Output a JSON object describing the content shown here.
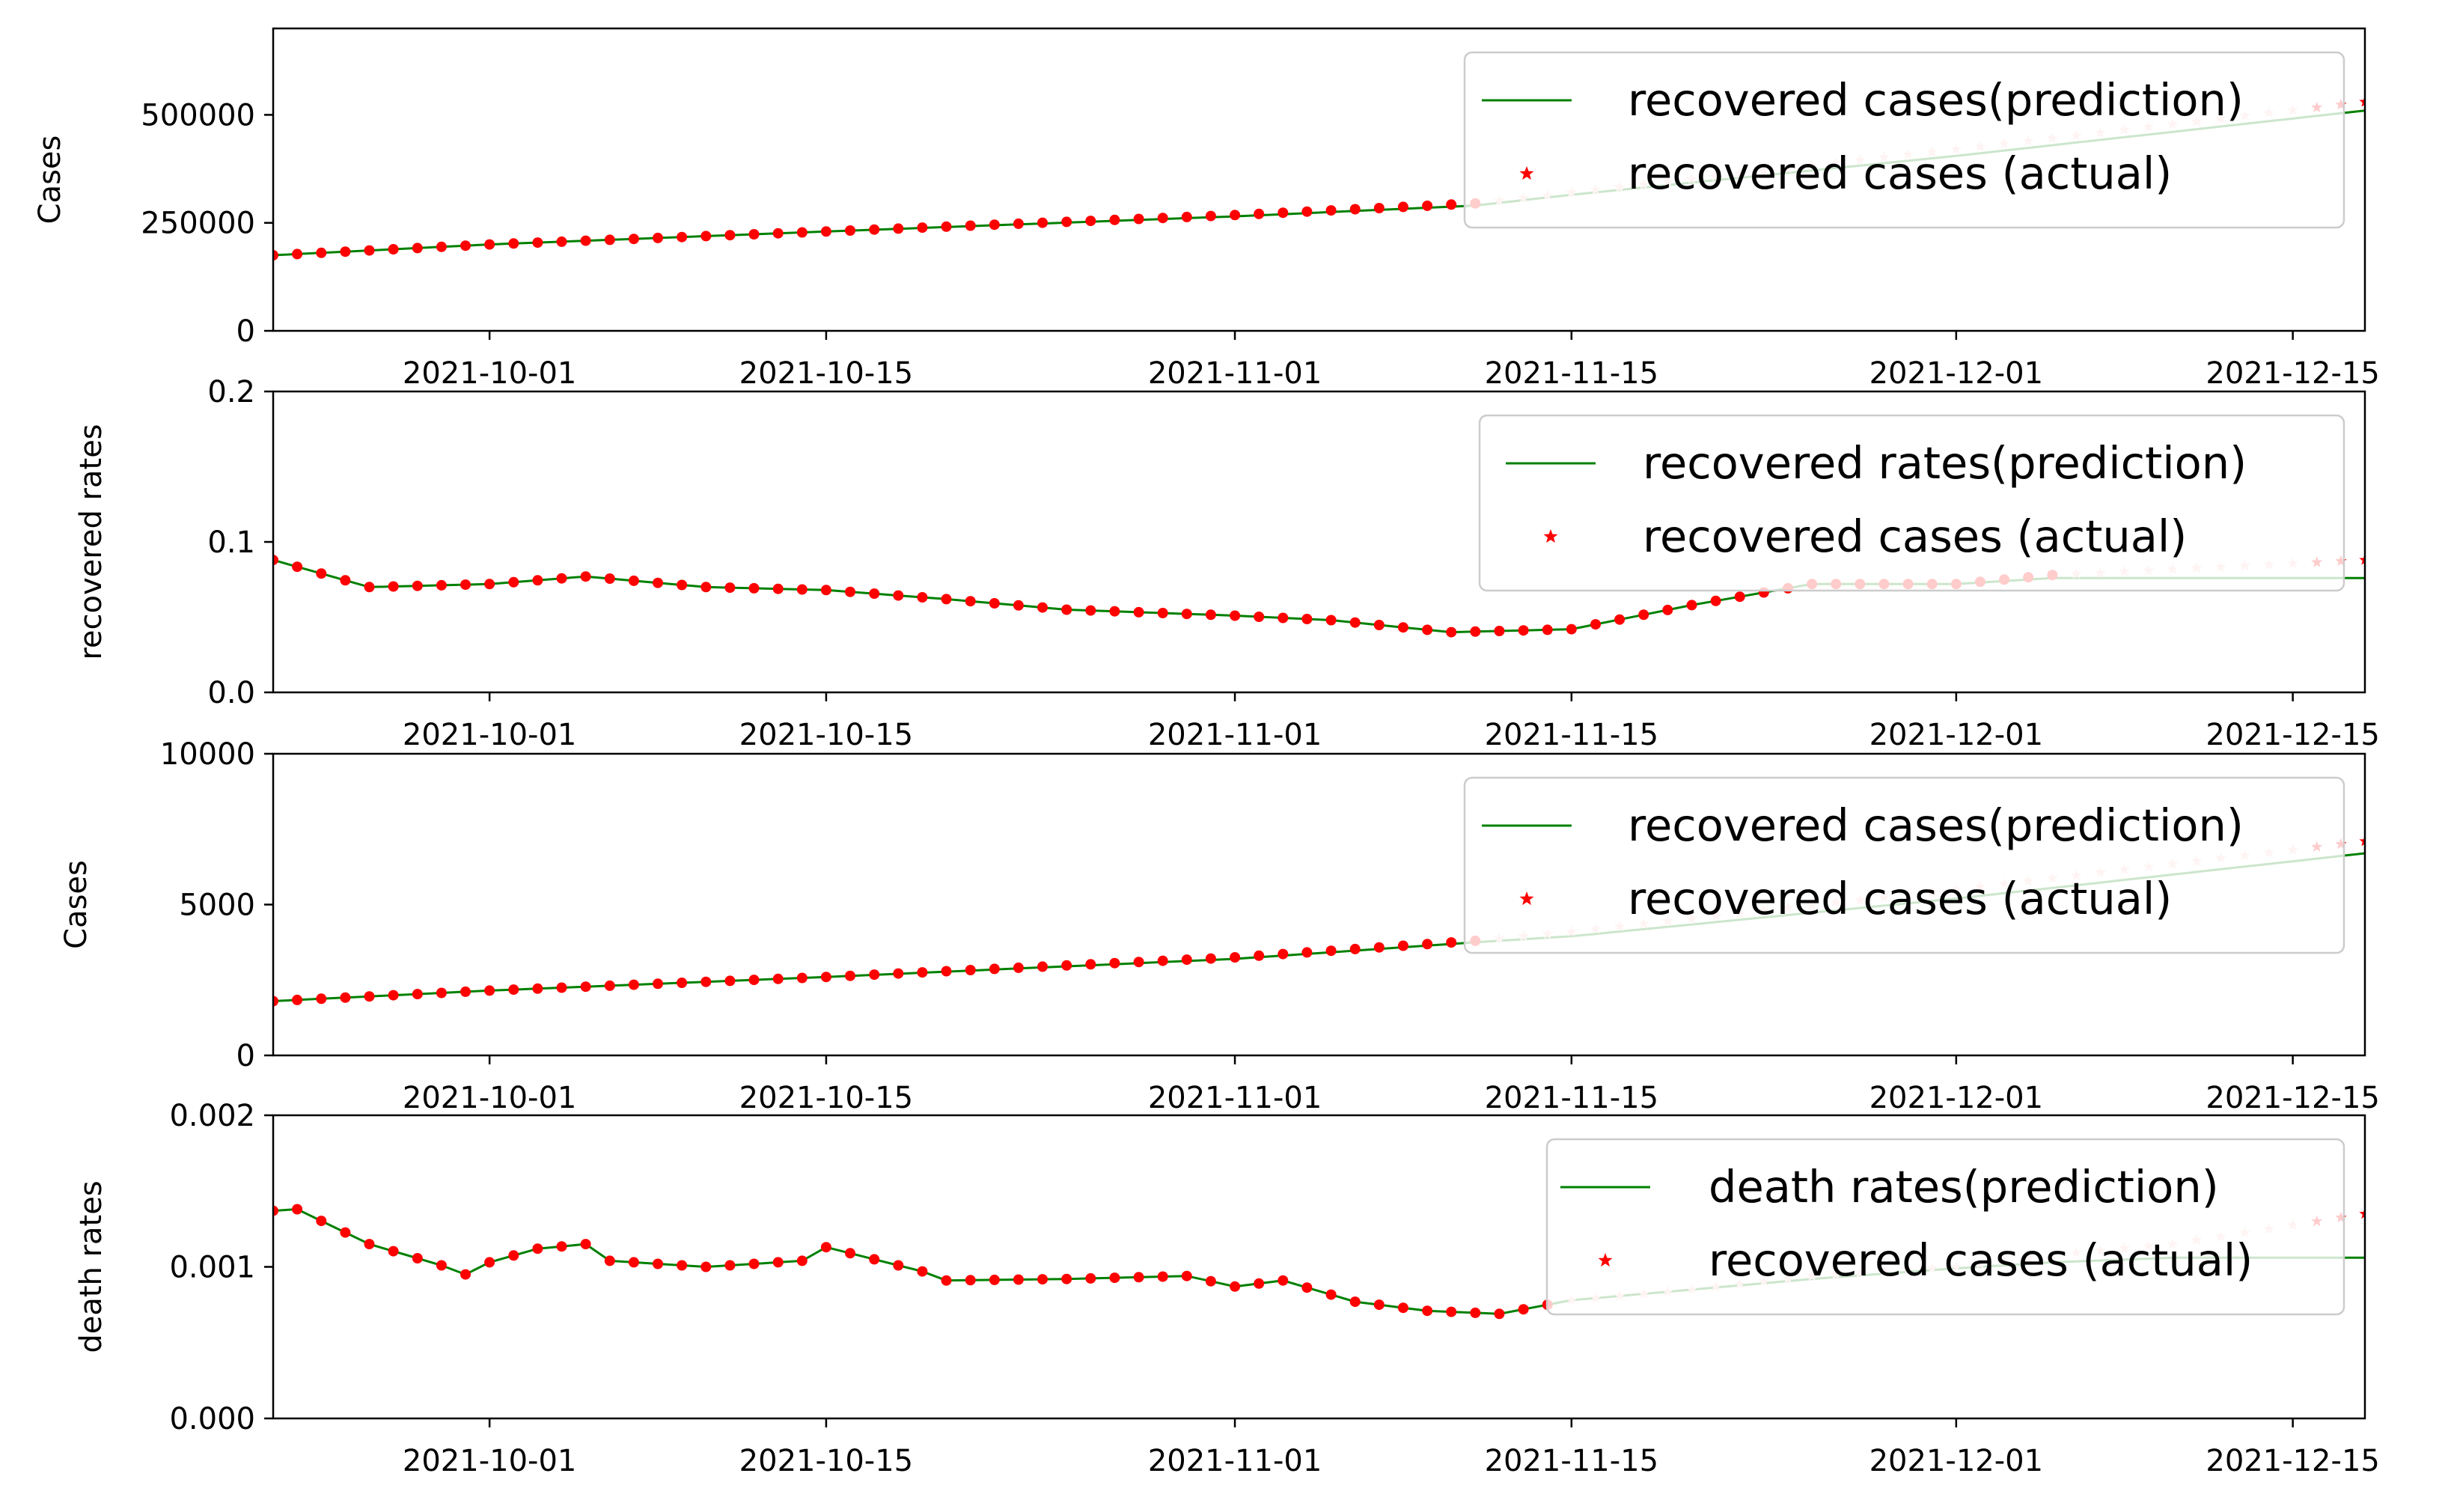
{
  "figure": {
    "colors": {
      "prediction": "#008000",
      "actual": "#ff0000",
      "actual_faded": "#ffc8c8",
      "axes": "#000000"
    }
  },
  "chart_data": [
    {
      "type": "line",
      "ylabel": "Cases",
      "ylim": [
        0,
        700000
      ],
      "yticks": [
        0,
        250000,
        500000
      ],
      "ytick_labels": [
        "0",
        "250000",
        "500000"
      ],
      "xlim": [
        "2021-09-22",
        "2021-12-18"
      ],
      "xticks": [
        "2021-10-01",
        "2021-10-15",
        "2021-11-01",
        "2021-11-15",
        "2021-12-01",
        "2021-12-15"
      ],
      "legend": {
        "location": "upper right"
      },
      "prediction_end": "2021-11-11",
      "series": [
        {
          "name": "recovered cases(prediction)",
          "style": "line",
          "color": "#008000",
          "x": [
            "2021-09-22",
            "2021-10-01",
            "2021-10-15",
            "2021-11-01",
            "2021-11-11",
            "2021-11-15",
            "2021-12-01",
            "2021-12-18"
          ],
          "values": [
            175000,
            200000,
            230000,
            265000,
            290000,
            315000,
            405000,
            510000
          ]
        },
        {
          "name": "recovered cases (actual)",
          "style": "markers",
          "color": "#ff0000",
          "x": [
            "2021-09-22",
            "2021-10-01",
            "2021-10-15",
            "2021-11-01",
            "2021-11-11",
            "2021-11-15",
            "2021-12-01",
            "2021-12-18"
          ],
          "values": [
            175000,
            200000,
            230000,
            268000,
            295000,
            320000,
            420000,
            530000
          ]
        }
      ]
    },
    {
      "type": "line",
      "ylabel": "recovered rates",
      "ylim": [
        0,
        0.2
      ],
      "yticks": [
        0,
        0.1,
        0.2
      ],
      "ytick_labels": [
        "0.0",
        "0.1",
        "0.2"
      ],
      "xlim": [
        "2021-09-22",
        "2021-12-18"
      ],
      "xticks": [
        "2021-10-01",
        "2021-10-15",
        "2021-11-01",
        "2021-11-15",
        "2021-12-01",
        "2021-12-15"
      ],
      "legend": {
        "location": "upper right"
      },
      "prediction_end": "2021-12-05",
      "series": [
        {
          "name": "recovered rates(prediction)",
          "style": "line",
          "color": "#008000",
          "x": [
            "2021-09-22",
            "2021-09-26",
            "2021-10-01",
            "2021-10-05",
            "2021-10-10",
            "2021-10-15",
            "2021-10-20",
            "2021-10-25",
            "2021-11-01",
            "2021-11-05",
            "2021-11-10",
            "2021-11-15",
            "2021-11-20",
            "2021-11-25",
            "2021-12-01",
            "2021-12-05",
            "2021-12-18"
          ],
          "values": [
            0.088,
            0.07,
            0.072,
            0.077,
            0.07,
            0.068,
            0.062,
            0.055,
            0.051,
            0.048,
            0.04,
            0.042,
            0.058,
            0.072,
            0.072,
            0.076,
            0.076
          ]
        },
        {
          "name": "recovered cases (actual)",
          "style": "markers",
          "color": "#ff0000",
          "x": [
            "2021-09-22",
            "2021-09-26",
            "2021-10-01",
            "2021-10-05",
            "2021-10-10",
            "2021-10-15",
            "2021-10-20",
            "2021-10-25",
            "2021-11-01",
            "2021-11-05",
            "2021-11-10",
            "2021-11-15",
            "2021-11-20",
            "2021-11-25",
            "2021-12-01",
            "2021-12-05",
            "2021-12-18"
          ],
          "values": [
            0.088,
            0.07,
            0.072,
            0.077,
            0.07,
            0.068,
            0.062,
            0.055,
            0.051,
            0.048,
            0.04,
            0.042,
            0.058,
            0.072,
            0.072,
            0.078,
            0.088
          ]
        }
      ]
    },
    {
      "type": "line",
      "ylabel": "Cases",
      "ylim": [
        0,
        10000
      ],
      "yticks": [
        0,
        5000,
        10000
      ],
      "ytick_labels": [
        "0",
        "5000",
        "10000"
      ],
      "xlim": [
        "2021-09-22",
        "2021-12-18"
      ],
      "xticks": [
        "2021-10-01",
        "2021-10-15",
        "2021-11-01",
        "2021-11-15",
        "2021-12-01",
        "2021-12-15"
      ],
      "legend": {
        "location": "upper right"
      },
      "prediction_end": "2021-11-11",
      "series": [
        {
          "name": "recovered cases(prediction)",
          "style": "line",
          "color": "#008000",
          "x": [
            "2021-09-22",
            "2021-10-01",
            "2021-10-15",
            "2021-11-01",
            "2021-11-11",
            "2021-11-15",
            "2021-12-01",
            "2021-12-18"
          ],
          "values": [
            1800,
            2150,
            2600,
            3200,
            3750,
            3950,
            5200,
            6700
          ]
        },
        {
          "name": "recovered cases (actual)",
          "style": "markers",
          "color": "#ff0000",
          "x": [
            "2021-09-22",
            "2021-10-01",
            "2021-10-15",
            "2021-11-01",
            "2021-11-11",
            "2021-11-15",
            "2021-12-01",
            "2021-12-18"
          ],
          "values": [
            1800,
            2150,
            2600,
            3250,
            3800,
            4100,
            5500,
            7100
          ]
        }
      ]
    },
    {
      "type": "line",
      "ylabel": "death rates",
      "ylim": [
        0,
        0.002
      ],
      "yticks": [
        0,
        0.001,
        0.002
      ],
      "ytick_labels": [
        "0.000",
        "0.001",
        "0.002"
      ],
      "xlim": [
        "2021-09-22",
        "2021-12-18"
      ],
      "xticks": [
        "2021-10-01",
        "2021-10-15",
        "2021-11-01",
        "2021-11-15",
        "2021-12-01",
        "2021-12-15"
      ],
      "legend": {
        "location": "upper right"
      },
      "prediction_end": "2021-11-14",
      "series": [
        {
          "name": "death rates(prediction)",
          "style": "line",
          "color": "#008000",
          "x": [
            "2021-09-22",
            "2021-09-23",
            "2021-09-26",
            "2021-09-29",
            "2021-09-30",
            "2021-10-01",
            "2021-10-03",
            "2021-10-05",
            "2021-10-06",
            "2021-10-10",
            "2021-10-14",
            "2021-10-15",
            "2021-10-19",
            "2021-10-20",
            "2021-10-25",
            "2021-10-30",
            "2021-11-01",
            "2021-11-03",
            "2021-11-06",
            "2021-11-09",
            "2021-11-12",
            "2021-11-15",
            "2021-11-20",
            "2021-11-25",
            "2021-12-01",
            "2021-12-05",
            "2021-12-10",
            "2021-12-18"
          ],
          "values": [
            0.00137,
            0.00138,
            0.00115,
            0.00101,
            0.00095,
            0.00103,
            0.00112,
            0.00115,
            0.00104,
            0.001,
            0.00104,
            0.00113,
            0.00097,
            0.00091,
            0.00092,
            0.00094,
            0.00087,
            0.00091,
            0.00077,
            0.00071,
            0.00069,
            0.00078,
            0.00085,
            0.00092,
            0.00099,
            0.00103,
            0.00106,
            0.00106
          ]
        },
        {
          "name": "recovered cases (actual)",
          "style": "markers",
          "color": "#ff0000",
          "x": [
            "2021-09-22",
            "2021-09-23",
            "2021-09-26",
            "2021-09-29",
            "2021-09-30",
            "2021-10-01",
            "2021-10-03",
            "2021-10-05",
            "2021-10-06",
            "2021-10-10",
            "2021-10-14",
            "2021-10-15",
            "2021-10-19",
            "2021-10-20",
            "2021-10-25",
            "2021-10-30",
            "2021-11-01",
            "2021-11-03",
            "2021-11-06",
            "2021-11-09",
            "2021-11-12",
            "2021-11-15",
            "2021-11-20",
            "2021-11-25",
            "2021-12-01",
            "2021-12-05",
            "2021-12-10",
            "2021-12-18"
          ],
          "values": [
            0.00137,
            0.00138,
            0.00115,
            0.00101,
            0.00095,
            0.00103,
            0.00112,
            0.00115,
            0.00104,
            0.001,
            0.00104,
            0.00113,
            0.00097,
            0.00091,
            0.00092,
            0.00094,
            0.00087,
            0.00091,
            0.00077,
            0.00071,
            0.00069,
            0.00078,
            0.00085,
            0.00094,
            0.001,
            0.00108,
            0.00115,
            0.00135
          ]
        }
      ]
    }
  ]
}
